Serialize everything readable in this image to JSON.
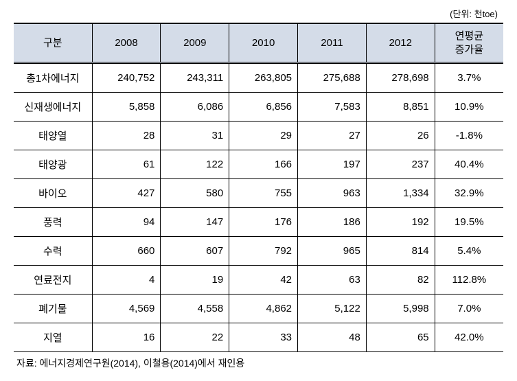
{
  "unit_label": "(단위: 천toe)",
  "table": {
    "columns": [
      "구분",
      "2008",
      "2009",
      "2010",
      "2011",
      "2012",
      "연평균\n증가율"
    ],
    "rows": [
      [
        "총1차에너지",
        "240,752",
        "243,311",
        "263,805",
        "275,688",
        "278,698",
        "3.7%"
      ],
      [
        "신재생에너지",
        "5,858",
        "6,086",
        "6,856",
        "7,583",
        "8,851",
        "10.9%"
      ],
      [
        "태양열",
        "28",
        "31",
        "29",
        "27",
        "26",
        "-1.8%"
      ],
      [
        "태양광",
        "61",
        "122",
        "166",
        "197",
        "237",
        "40.4%"
      ],
      [
        "바이오",
        "427",
        "580",
        "755",
        "963",
        "1,334",
        "32.9%"
      ],
      [
        "풍력",
        "94",
        "147",
        "176",
        "186",
        "192",
        "19.5%"
      ],
      [
        "수력",
        "660",
        "607",
        "792",
        "965",
        "814",
        "5.4%"
      ],
      [
        "연료전지",
        "4",
        "19",
        "42",
        "63",
        "82",
        "112.8%"
      ],
      [
        "폐기물",
        "4,569",
        "4,558",
        "4,862",
        "5,122",
        "5,998",
        "7.0%"
      ],
      [
        "지열",
        "16",
        "22",
        "33",
        "48",
        "65",
        "42.0%"
      ]
    ]
  },
  "source": "자료: 에너지경제연구원(2014), 이철용(2014)에서 재인용",
  "styling": {
    "header_bg": "#d4dce8",
    "border_color": "#000000",
    "background": "#ffffff",
    "font_size_body": 15,
    "font_size_unit": 13,
    "font_size_source": 14,
    "col_widths": [
      "16%",
      "14%",
      "14%",
      "14%",
      "14%",
      "14%",
      "14%"
    ]
  }
}
